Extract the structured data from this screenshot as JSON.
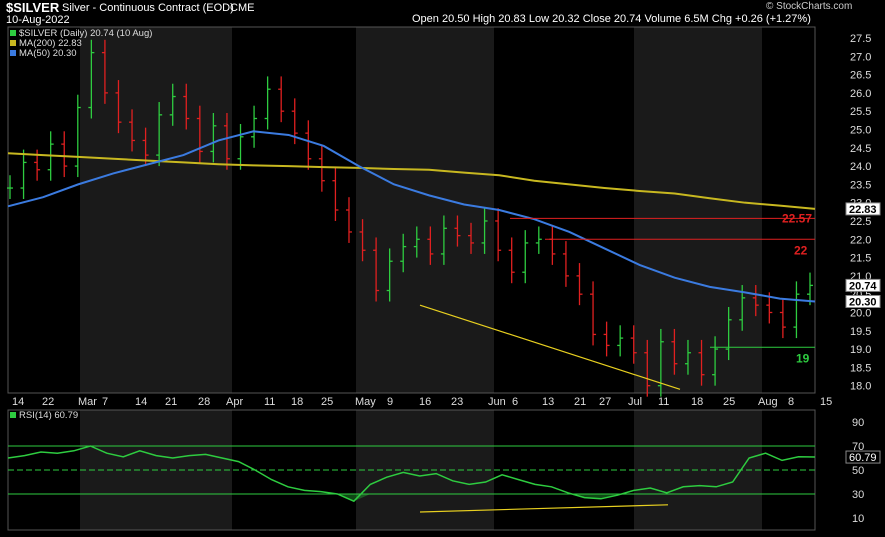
{
  "header": {
    "symbol": "$SILVER",
    "description": "Silver - Continuous Contract (EOD)",
    "exchange": "CME",
    "date": "10-Aug-2022",
    "open_label": "Open",
    "open": "20.50",
    "high_label": "High",
    "high": "20.83",
    "low_label": "Low",
    "low": "20.32",
    "close_label": "Close",
    "close": "20.74",
    "volume_label": "Volume",
    "volume": "6.5M",
    "chg_label": "Chg",
    "chg": "+0.26 (+1.27%)",
    "brand": "© StockCharts.com"
  },
  "colors": {
    "up": "#2ecc40",
    "down": "#e02020",
    "ma200": "#c8b820",
    "ma50": "#3b7be0",
    "trendline": "#e8d020",
    "band": "#1a1a1a",
    "grid": "#333333"
  },
  "chart_data": [
    {
      "type": "ohlc",
      "title": "$SILVER (Daily) 20.74 (10 Aug)",
      "legend": [
        "$SILVER (Daily) 20.74 (10 Aug)",
        "MA(200) 22.83",
        "MA(50) 20.30"
      ],
      "ylim": [
        17.8,
        27.8
      ],
      "y_ticks": [
        "18.0",
        "18.5",
        "19.0",
        "19.5",
        "20.0",
        "20.5",
        "21.0",
        "21.5",
        "22.0",
        "22.5",
        "23.0",
        "23.5",
        "24.0",
        "24.5",
        "25.0",
        "25.5",
        "26.0",
        "26.5",
        "27.0",
        "27.5"
      ],
      "x_ticks": [
        "14",
        "22",
        "Mar",
        "7",
        "14",
        "21",
        "28",
        "Apr",
        "11",
        "18",
        "25",
        "May",
        "9",
        "16",
        "23",
        "Jun",
        "6",
        "13",
        "21",
        "27",
        "Jul",
        "11",
        "18",
        "25",
        "Aug",
        "8",
        "15"
      ],
      "price_tags": [
        {
          "label": "20.74",
          "value": 20.74
        },
        {
          "label": "20.30",
          "value": 20.3
        },
        {
          "label": "22.83",
          "value": 22.83
        }
      ],
      "annotations": [
        {
          "text": "22.57",
          "value": 22.57,
          "color": "#e02020"
        },
        {
          "text": "22",
          "value": 22.0,
          "color": "#e02020"
        },
        {
          "text": "19",
          "value": 19.05,
          "color": "#2ecc40"
        }
      ],
      "ma200": [
        24.35,
        24.3,
        24.25,
        24.2,
        24.15,
        24.1,
        24.05,
        24.02,
        24.0,
        23.97,
        23.95,
        23.92,
        23.9,
        23.82,
        23.75,
        23.6,
        23.5,
        23.4,
        23.32,
        23.25,
        23.12,
        23.0,
        22.92,
        22.83
      ],
      "ma50": [
        22.9,
        23.15,
        23.5,
        23.8,
        24.05,
        24.3,
        24.7,
        24.95,
        24.85,
        24.55,
        24.0,
        23.5,
        23.2,
        22.95,
        22.8,
        22.55,
        22.2,
        21.75,
        21.3,
        20.95,
        20.7,
        20.55,
        20.38,
        20.3
      ],
      "ohlc_close": [
        23.4,
        24.1,
        23.9,
        24.6,
        24.0,
        25.6,
        27.1,
        26.0,
        25.2,
        24.7,
        24.3,
        25.4,
        25.9,
        25.3,
        24.4,
        25.1,
        24.2,
        24.8,
        25.3,
        26.1,
        25.5,
        24.9,
        24.2,
        23.6,
        22.8,
        22.2,
        21.7,
        20.6,
        21.4,
        21.8,
        22.0,
        21.6,
        22.3,
        22.1,
        21.9,
        22.5,
        21.7,
        21.1,
        21.9,
        22.0,
        21.6,
        21.0,
        20.5,
        19.4,
        19.1,
        19.3,
        18.9,
        18.0,
        19.2,
        18.6,
        18.9,
        18.3,
        19.0,
        19.8,
        20.4,
        20.2,
        20.0,
        19.6,
        20.5,
        20.74
      ]
    },
    {
      "type": "line",
      "title": "RSI(14) 60.79",
      "legend": [
        "RSI(14) 60.79"
      ],
      "ylim": [
        0,
        100
      ],
      "y_ticks": [
        "10",
        "30",
        "50",
        "70",
        "90"
      ],
      "levels": [
        70,
        50,
        30
      ],
      "price_tag": "60.79",
      "values": [
        60,
        62,
        65,
        64,
        66,
        70,
        64,
        61,
        66,
        62,
        60,
        62,
        63,
        60,
        57,
        50,
        42,
        36,
        33,
        32,
        30,
        24,
        38,
        44,
        48,
        45,
        47,
        41,
        38,
        40,
        46,
        42,
        38,
        36,
        31,
        27,
        26,
        29,
        33,
        35,
        31,
        36,
        37,
        36,
        40,
        60,
        64,
        58,
        61,
        60.79
      ]
    }
  ]
}
